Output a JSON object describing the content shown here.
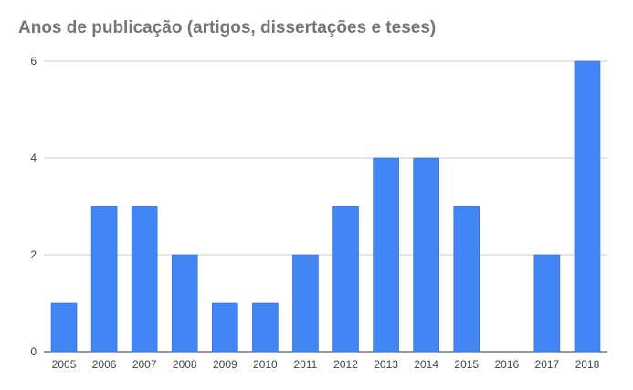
{
  "chart_data": {
    "type": "bar",
    "title": "Anos de publicação (artigos, dissertações e teses)",
    "xlabel": "",
    "ylabel": "",
    "categories": [
      "2005",
      "2006",
      "2007",
      "2008",
      "2009",
      "2010",
      "2011",
      "2012",
      "2013",
      "2014",
      "2015",
      "2016",
      "2017",
      "2018"
    ],
    "values": [
      1,
      3,
      3,
      2,
      1,
      1,
      2,
      3,
      4,
      4,
      3,
      0,
      2,
      6
    ],
    "ylim": [
      0,
      6
    ],
    "yticks": [
      0,
      2,
      4,
      6
    ],
    "grid": true,
    "legend": "none",
    "bar_color": "#4285f4"
  }
}
